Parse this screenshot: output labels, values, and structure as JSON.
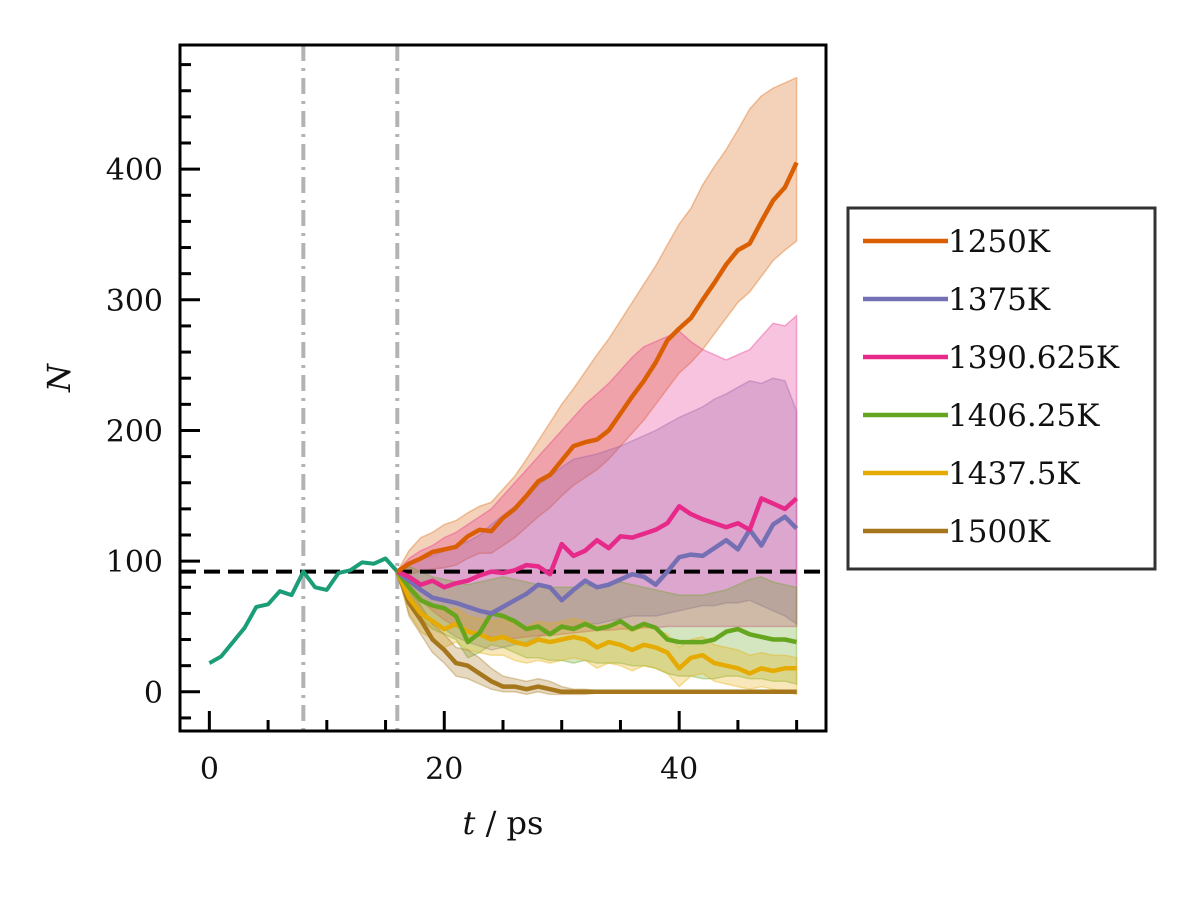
{
  "chart_data": {
    "type": "line",
    "xlabel": "t / ps",
    "ylabel": "N",
    "xlim": [
      -2.5,
      52.5
    ],
    "ylim": [
      -30,
      495
    ],
    "x_ticks": [
      {
        "value": 0,
        "label": "0"
      },
      {
        "value": 20,
        "label": "20"
      },
      {
        "value": 40,
        "label": "40"
      }
    ],
    "y_ticks": [
      {
        "value": 0,
        "label": "0"
      },
      {
        "value": 100,
        "label": "100"
      },
      {
        "value": 200,
        "label": "200"
      },
      {
        "value": 300,
        "label": "300"
      },
      {
        "value": 400,
        "label": "400"
      }
    ],
    "grid": false,
    "legend_position": "outside-right",
    "reference_lines": {
      "horizontal_dashed_y": 92,
      "vertical_dashdot_x": [
        8,
        16
      ]
    },
    "initial_series": {
      "color": "#1b9e77",
      "x": [
        0,
        1,
        2,
        3,
        4,
        5,
        6,
        7,
        8,
        9,
        10,
        11,
        12,
        13,
        14,
        15,
        16
      ],
      "y": [
        22,
        27,
        38,
        49,
        65,
        67,
        77,
        74,
        92,
        80,
        78,
        91,
        93,
        99,
        98,
        102,
        92
      ]
    },
    "series": [
      {
        "name": "1250K",
        "color": "#d95f02",
        "x": [
          16,
          17,
          18,
          19,
          20,
          21,
          22,
          23,
          24,
          25,
          26,
          27,
          28,
          29,
          30,
          31,
          32,
          33,
          34,
          35,
          36,
          37,
          38,
          39,
          40,
          41,
          42,
          43,
          44,
          45,
          46,
          47,
          48,
          49,
          50
        ],
        "y": [
          92,
          98,
          102,
          107,
          109,
          111,
          119,
          124,
          123,
          133,
          140,
          150,
          161,
          166,
          177,
          188,
          191,
          193,
          200,
          213,
          226,
          238,
          252,
          269,
          278,
          286,
          300,
          313,
          327,
          338,
          343,
          360,
          376,
          386,
          405
        ],
        "upper": [
          92,
          108,
          118,
          122,
          128,
          131,
          137,
          142,
          145,
          155,
          165,
          178,
          192,
          206,
          220,
          232,
          245,
          258,
          270,
          284,
          298,
          312,
          326,
          342,
          358,
          370,
          388,
          402,
          415,
          430,
          446,
          456,
          462,
          466,
          470
        ],
        "lower": [
          92,
          90,
          92,
          94,
          95,
          97,
          102,
          106,
          106,
          112,
          118,
          126,
          134,
          141,
          150,
          158,
          164,
          170,
          178,
          188,
          198,
          208,
          220,
          232,
          244,
          252,
          262,
          274,
          286,
          298,
          306,
          318,
          330,
          338,
          345
        ]
      },
      {
        "name": "1375K",
        "color": "#7570b3",
        "x": [
          16,
          17,
          18,
          19,
          20,
          21,
          22,
          23,
          24,
          25,
          26,
          27,
          28,
          29,
          30,
          31,
          32,
          33,
          34,
          35,
          36,
          37,
          38,
          39,
          40,
          41,
          42,
          43,
          44,
          45,
          46,
          47,
          48,
          49,
          50
        ],
        "y": [
          92,
          85,
          78,
          72,
          70,
          68,
          65,
          62,
          60,
          65,
          70,
          75,
          82,
          80,
          70,
          78,
          85,
          80,
          82,
          86,
          90,
          88,
          82,
          92,
          103,
          105,
          104,
          110,
          116,
          109,
          124,
          112,
          128,
          134,
          125
        ],
        "upper": [
          92,
          98,
          102,
          104,
          108,
          112,
          115,
          120,
          128,
          135,
          142,
          150,
          158,
          165,
          172,
          178,
          180,
          182,
          185,
          188,
          192,
          196,
          200,
          205,
          210,
          214,
          218,
          224,
          228,
          233,
          238,
          236,
          240,
          238,
          215
        ],
        "lower": [
          92,
          75,
          62,
          52,
          48,
          42,
          38,
          35,
          32,
          34,
          36,
          38,
          42,
          45,
          48,
          50,
          52,
          52,
          54,
          56,
          58,
          58,
          58,
          60,
          62,
          64,
          66,
          66,
          68,
          68,
          70,
          66,
          62,
          58,
          52
        ]
      },
      {
        "name": "1390.625K",
        "color": "#e7298a",
        "x": [
          16,
          17,
          18,
          19,
          20,
          21,
          22,
          23,
          24,
          25,
          26,
          27,
          28,
          29,
          30,
          31,
          32,
          33,
          34,
          35,
          36,
          37,
          38,
          39,
          40,
          41,
          42,
          43,
          44,
          45,
          46,
          47,
          48,
          49,
          50
        ],
        "y": [
          92,
          88,
          82,
          85,
          80,
          83,
          85,
          89,
          92,
          91,
          93,
          97,
          96,
          90,
          113,
          104,
          108,
          116,
          110,
          119,
          118,
          121,
          124,
          129,
          142,
          136,
          132,
          129,
          126,
          129,
          124,
          148,
          144,
          140,
          148
        ],
        "upper": [
          92,
          102,
          108,
          112,
          118,
          122,
          128,
          134,
          140,
          150,
          160,
          170,
          180,
          190,
          200,
          210,
          220,
          228,
          236,
          246,
          256,
          264,
          268,
          272,
          276,
          268,
          262,
          258,
          254,
          258,
          262,
          272,
          282,
          280,
          288
        ],
        "lower": [
          92,
          80,
          70,
          62,
          55,
          50,
          46,
          44,
          42,
          41,
          41,
          42,
          43,
          43,
          44,
          45,
          46,
          47,
          47,
          48,
          48,
          49,
          49,
          50,
          50,
          50,
          50,
          50,
          50,
          50,
          50,
          50,
          50,
          50,
          50
        ]
      },
      {
        "name": "1406.25K",
        "color": "#66a61e",
        "x": [
          16,
          17,
          18,
          19,
          20,
          21,
          22,
          23,
          24,
          25,
          26,
          27,
          28,
          29,
          30,
          31,
          32,
          33,
          34,
          35,
          36,
          37,
          38,
          39,
          40,
          41,
          42,
          43,
          44,
          45,
          46,
          47,
          48,
          49,
          50
        ],
        "y": [
          92,
          80,
          70,
          66,
          64,
          58,
          38,
          45,
          60,
          58,
          54,
          48,
          50,
          44,
          50,
          48,
          52,
          48,
          50,
          54,
          48,
          52,
          49,
          40,
          38,
          38,
          38,
          40,
          46,
          48,
          44,
          42,
          40,
          40,
          38
        ],
        "upper": [
          92,
          96,
          92,
          88,
          86,
          84,
          82,
          84,
          86,
          88,
          86,
          84,
          82,
          80,
          80,
          80,
          82,
          80,
          82,
          84,
          82,
          80,
          78,
          76,
          74,
          74,
          74,
          76,
          78,
          82,
          86,
          88,
          84,
          82,
          80
        ],
        "lower": [
          92,
          68,
          56,
          48,
          44,
          40,
          26,
          30,
          36,
          34,
          30,
          26,
          26,
          24,
          24,
          22,
          24,
          22,
          22,
          22,
          20,
          20,
          18,
          14,
          12,
          12,
          10,
          10,
          12,
          12,
          10,
          10,
          8,
          8,
          6
        ]
      },
      {
        "name": "1437.5K",
        "color": "#e6ab02",
        "x": [
          16,
          17,
          18,
          19,
          20,
          21,
          22,
          23,
          24,
          25,
          26,
          27,
          28,
          29,
          30,
          31,
          32,
          33,
          34,
          35,
          36,
          37,
          38,
          39,
          40,
          41,
          42,
          43,
          44,
          45,
          46,
          47,
          48,
          49,
          50
        ],
        "y": [
          92,
          72,
          60,
          54,
          48,
          52,
          46,
          44,
          40,
          42,
          38,
          36,
          40,
          38,
          40,
          42,
          40,
          34,
          38,
          36,
          32,
          36,
          34,
          30,
          18,
          26,
          28,
          22,
          20,
          18,
          14,
          18,
          16,
          18,
          18
        ],
        "upper": [
          92,
          82,
          72,
          66,
          62,
          64,
          58,
          56,
          54,
          56,
          52,
          50,
          54,
          52,
          54,
          56,
          54,
          50,
          52,
          50,
          46,
          50,
          48,
          44,
          34,
          40,
          42,
          36,
          34,
          32,
          28,
          30,
          28,
          28,
          26
        ],
        "lower": [
          92,
          60,
          46,
          40,
          34,
          38,
          32,
          30,
          28,
          28,
          24,
          22,
          24,
          22,
          24,
          26,
          24,
          18,
          22,
          20,
          16,
          20,
          18,
          14,
          4,
          12,
          14,
          8,
          6,
          4,
          2,
          4,
          2,
          0,
          -2
        ]
      },
      {
        "name": "1500K",
        "color": "#a6761d",
        "x": [
          16,
          17,
          18,
          19,
          20,
          21,
          22,
          23,
          24,
          25,
          26,
          27,
          28,
          29,
          30,
          31,
          32,
          33,
          34,
          35,
          36,
          37,
          38,
          39,
          40,
          41,
          42,
          43,
          44,
          45,
          46,
          47,
          48,
          49,
          50
        ],
        "y": [
          92,
          68,
          55,
          40,
          32,
          22,
          20,
          14,
          8,
          4,
          4,
          2,
          4,
          2,
          0,
          0,
          0,
          0,
          0,
          0,
          0,
          0,
          0,
          0,
          0,
          0,
          0,
          0,
          0,
          0,
          0,
          0,
          0,
          0,
          0
        ],
        "upper": [
          92,
          78,
          66,
          52,
          44,
          34,
          32,
          26,
          18,
          12,
          10,
          8,
          10,
          8,
          4,
          2,
          2,
          1,
          1,
          1,
          1,
          1,
          1,
          1,
          1,
          1,
          1,
          1,
          1,
          1,
          1,
          1,
          1,
          1,
          1
        ],
        "lower": [
          92,
          58,
          44,
          30,
          22,
          12,
          10,
          6,
          2,
          0,
          0,
          -2,
          0,
          -2,
          -2,
          -2,
          -2,
          -1,
          -1,
          -1,
          -1,
          -1,
          -1,
          -1,
          -1,
          -1,
          -1,
          -1,
          -1,
          -1,
          -1,
          -1,
          -1,
          -1,
          -1
        ]
      }
    ]
  }
}
